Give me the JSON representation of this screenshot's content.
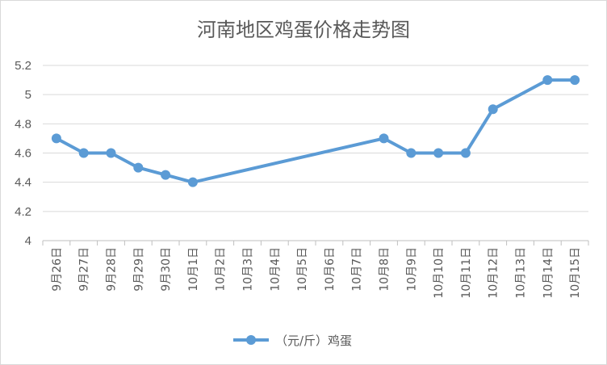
{
  "chart_data": {
    "type": "line",
    "title": "河南地区鸡蛋价格走势图",
    "categories": [
      "9月26日",
      "9月27日",
      "9月28日",
      "9月29日",
      "9月30日",
      "10月1日",
      "10月2日",
      "10月3日",
      "10月4日",
      "10月5日",
      "10月6日",
      "10月7日",
      "10月8日",
      "10月9日",
      "10月10日",
      "10月11日",
      "10月12日",
      "10月13日",
      "10月14日",
      "10月15日"
    ],
    "series": [
      {
        "name": "（元/斤）鸡蛋",
        "color": "#5b9bd5",
        "values": [
          4.7,
          4.6,
          4.6,
          4.5,
          4.45,
          4.4,
          null,
          null,
          null,
          null,
          null,
          null,
          4.7,
          4.6,
          4.6,
          4.6,
          4.9,
          null,
          5.1,
          5.1
        ]
      }
    ],
    "yticks": [
      "5.2",
      "5",
      "4.8",
      "4.6",
      "4.4",
      "4.2",
      "4"
    ],
    "ylim": [
      4,
      5.2
    ],
    "grid": true,
    "legend_position": "bottom"
  }
}
